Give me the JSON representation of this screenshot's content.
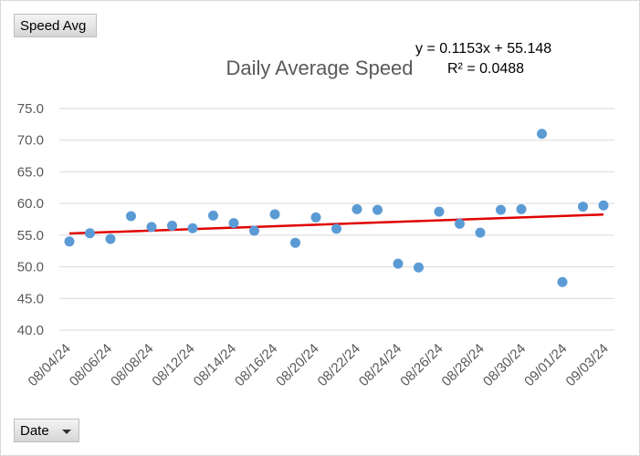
{
  "buttons": {
    "value_field": "Speed Avg",
    "axis_field": "Date"
  },
  "trendline": {
    "equation": "y = 0.1153x + 55.148",
    "r_squared": "R² = 0.0488",
    "color": "#e00000"
  },
  "chart_data": {
    "type": "scatter",
    "title": "Daily Average Speed",
    "xlabel": "",
    "ylabel": "",
    "ylim": [
      40.0,
      75.0
    ],
    "y_ticks": [
      "40.0",
      "45.0",
      "50.0",
      "55.0",
      "60.0",
      "65.0",
      "70.0",
      "75.0"
    ],
    "x_tick_labels": [
      "08/04/24",
      "08/06/24",
      "08/08/24",
      "08/12/24",
      "08/14/24",
      "08/16/24",
      "08/20/24",
      "08/22/24",
      "08/24/24",
      "08/26/24",
      "08/28/24",
      "08/30/24",
      "09/01/24",
      "09/03/24"
    ],
    "grid": true,
    "marker_color": "#5b9bd5",
    "points": [
      54.0,
      55.3,
      54.4,
      58.0,
      56.3,
      56.5,
      56.1,
      58.1,
      56.9,
      55.7,
      58.3,
      53.8,
      57.8,
      56.0,
      59.1,
      59.0,
      50.5,
      49.9,
      58.7,
      56.8,
      55.4,
      59.0,
      59.1,
      71.0,
      47.6,
      59.5,
      59.7
    ],
    "trend": {
      "slope": 0.1153,
      "intercept": 55.148
    }
  }
}
